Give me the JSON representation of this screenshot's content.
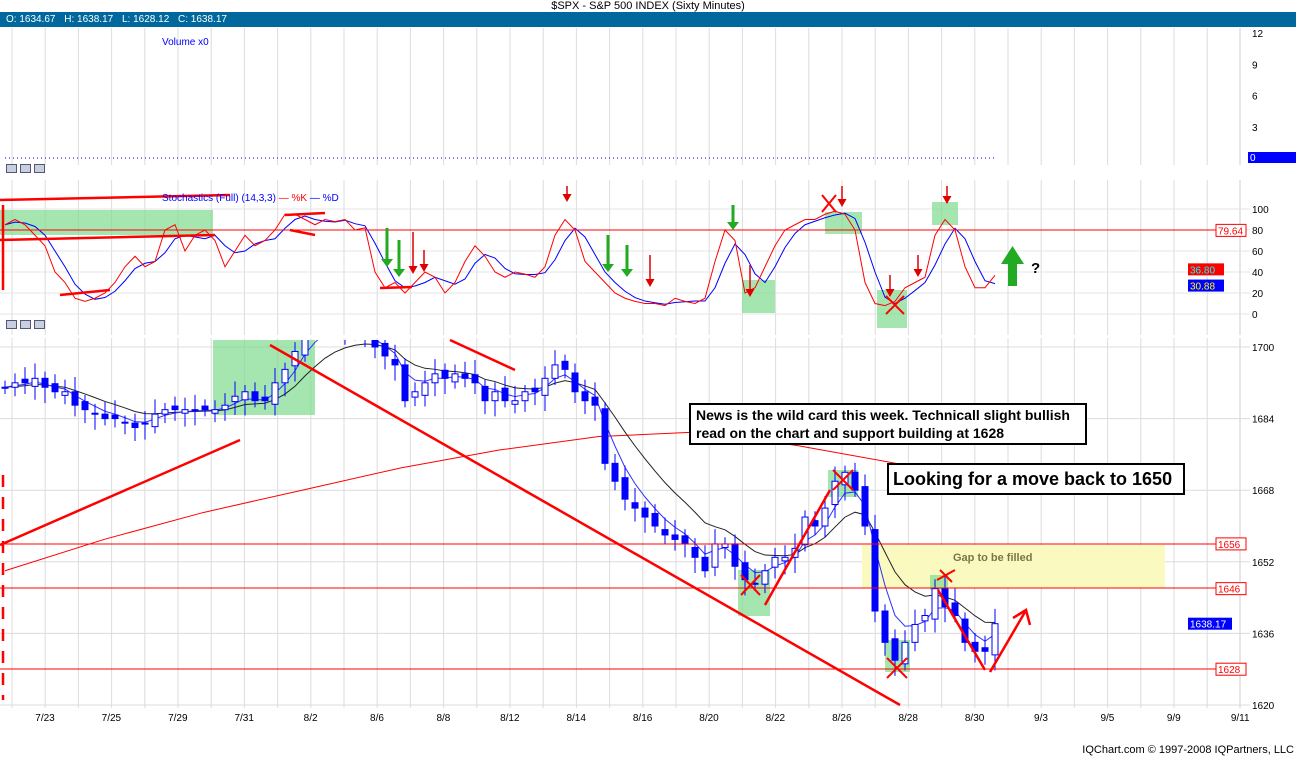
{
  "title": "$SPX - S&P 500 INDEX (Sixty Minutes)",
  "ohlc": {
    "open": "O: 1634.67",
    "high": "H: 1638.17",
    "low": "L: 1628.12",
    "close": "C: 1638.17"
  },
  "volume_panel": {
    "label": "Volume x0",
    "ticks": [
      "12",
      "9",
      "6",
      "3"
    ],
    "current": "0"
  },
  "stoch_panel": {
    "label": "Stochastics (Full) (14,3,3)",
    "k_label": "%K",
    "d_label": "%D",
    "ticks": [
      "100",
      "80",
      "60",
      "40",
      "20",
      "0"
    ],
    "level_line": "79.64",
    "k_value": "36.80",
    "d_value": "30.88"
  },
  "annotations": {
    "news": "News is the wild card this week. Technicall slight bullish read on the chart and support building at 1628",
    "target": "Looking for a move back to 1650",
    "gap": "Gap to be filled",
    "question": "?"
  },
  "levels": [
    "1656",
    "1646",
    "1628"
  ],
  "footer": "IQChart.com © 1997-2008 IQPartners, LLC",
  "colors": {
    "header": "#00689c",
    "candles": "#0000ff",
    "k_line": "#ff0000",
    "d_line": "#0000ff",
    "annotation": "#ff0000",
    "highlight": "#7fdc8f",
    "gap": "#fafac0"
  },
  "chart_data": {
    "type": "candlestick",
    "title": "$SPX - S&P 500 INDEX (Sixty Minutes)",
    "x_tick_labels": [
      "7/23",
      "7/25",
      "7/29",
      "7/31",
      "8/2",
      "8/6",
      "8/8",
      "8/12",
      "8/14",
      "8/16",
      "8/20",
      "8/22",
      "8/26",
      "8/28",
      "8/30",
      "9/3",
      "9/5",
      "9/9",
      "9/11"
    ],
    "y_ticks": [
      "1700",
      "1684",
      "1668",
      "1652",
      "1636",
      "1620"
    ],
    "ylim": [
      1620,
      1700
    ],
    "last_price": "1638.17",
    "closes": [
      1691,
      1692,
      1692,
      1693,
      1691,
      1690,
      1690,
      1687,
      1686,
      1685,
      1684,
      1684,
      1683,
      1682,
      1683,
      1685,
      1686,
      1686,
      1686,
      1686,
      1686,
      1686,
      1687,
      1689,
      1690,
      1688,
      1688,
      1692,
      1695,
      1699,
      1704,
      1705,
      1706,
      1705,
      1704,
      1703,
      1702,
      1700,
      1698,
      1696,
      1688,
      1690,
      1692,
      1694,
      1693,
      1694,
      1693,
      1692,
      1688,
      1690,
      1688,
      1688,
      1690,
      1690,
      1693,
      1696,
      1695,
      1690,
      1688,
      1687,
      1674,
      1670,
      1666,
      1664,
      1662,
      1660,
      1658,
      1657,
      1656,
      1653,
      1650,
      1656,
      1656,
      1651,
      1648,
      1647,
      1650,
      1653,
      1653,
      1655,
      1662,
      1660,
      1664,
      1670,
      1672,
      1668,
      1660,
      1641,
      1634,
      1630,
      1634,
      1638,
      1640,
      1646,
      1642,
      1640,
      1634,
      1632,
      1632,
      1638.17
    ],
    "ma_long": [
      1650,
      1657,
      1663,
      1668,
      1673,
      1677,
      1680,
      1681,
      1678,
      1674,
      1668
    ],
    "stoch_k": [
      85,
      90,
      85,
      75,
      65,
      40,
      30,
      15,
      12,
      15,
      20,
      30,
      45,
      55,
      45,
      50,
      80,
      85,
      60,
      75,
      80,
      70,
      45,
      60,
      75,
      65,
      70,
      80,
      95,
      95,
      90,
      85,
      90,
      88,
      90,
      80,
      82,
      40,
      25,
      30,
      20,
      30,
      40,
      35,
      20,
      30,
      50,
      65,
      55,
      40,
      35,
      40,
      38,
      35,
      45,
      75,
      90,
      80,
      50,
      40,
      30,
      20,
      15,
      12,
      10,
      10,
      8,
      15,
      12,
      10,
      15,
      50,
      80,
      70,
      20,
      25,
      45,
      65,
      80,
      85,
      90,
      90,
      95,
      98,
      95,
      80,
      30,
      10,
      8,
      12,
      25,
      30,
      35,
      75,
      90,
      80,
      45,
      25,
      25,
      36.8
    ],
    "stoch_ylim": [
      0,
      100
    ],
    "volume_ylim": [
      0,
      12
    ]
  }
}
